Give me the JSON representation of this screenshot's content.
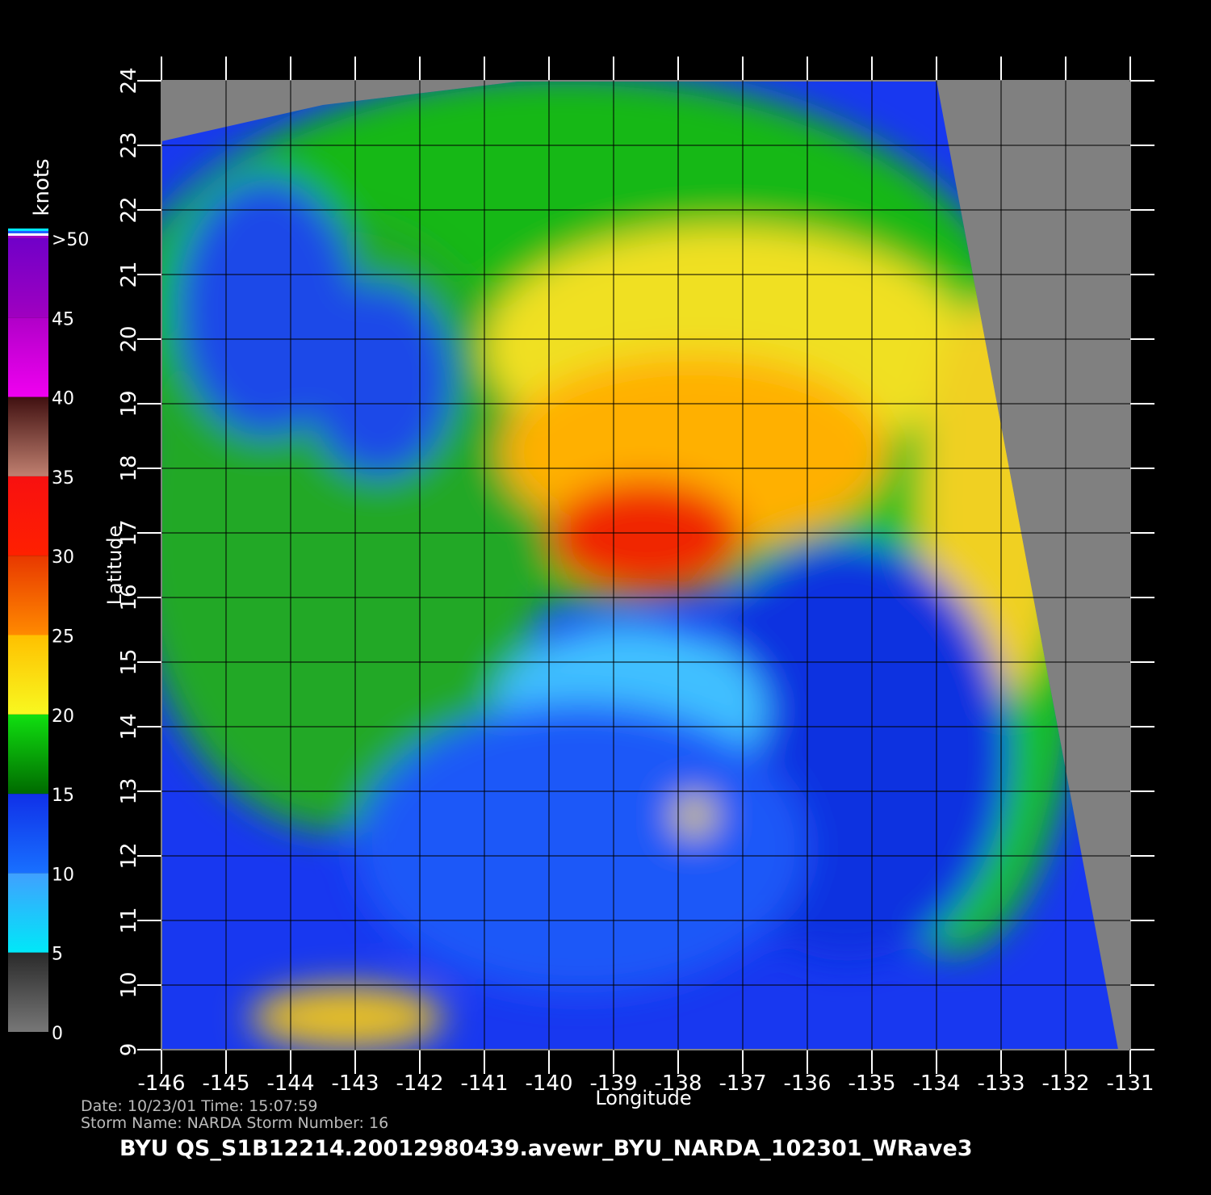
{
  "map": {
    "xlabel": "Longitude",
    "ylabel": "Latitude",
    "xlim": [
      -146,
      -131
    ],
    "ylim": [
      9,
      24
    ],
    "xticks": [
      -146,
      -145,
      -144,
      -143,
      -142,
      -141,
      -140,
      -139,
      -138,
      -137,
      -136,
      -135,
      -134,
      -133,
      -132,
      -131
    ],
    "yticks": [
      9,
      10,
      11,
      12,
      13,
      14,
      15,
      16,
      17,
      18,
      19,
      20,
      21,
      22,
      23,
      24
    ],
    "grid": true,
    "colorbar": {
      "label": "knots",
      "lim": [
        0,
        50
      ],
      "ticks": [
        0,
        5,
        10,
        15,
        20,
        25,
        30,
        35,
        40,
        45,
        {
          "value": 50,
          "label": ">50"
        }
      ],
      "colors": [
        [
          "#777777",
          "#2a2a2a"
        ],
        [
          "#00e8f8",
          "#40a0ff"
        ],
        [
          "#1870ff",
          "#1030e8"
        ],
        [
          "#006a00",
          "#10e010"
        ],
        [
          "#f8f820",
          "#ffc000"
        ],
        [
          "#ff8a00",
          "#e83800"
        ],
        [
          "#ff2000",
          "#f81010"
        ],
        [
          "#c08070",
          "#401010"
        ],
        [
          "#f000f0",
          "#b000c8"
        ],
        [
          "#a000c0",
          "#7000c8"
        ]
      ]
    }
  },
  "footer": {
    "line1": "Date: 10/23/01   Time: 15:07:59",
    "line2": "Storm Name: NARDA   Storm Number: 16",
    "title": "BYU  QS_S1B12214.20012980439.avewr_BYU_NARDA_102301_WRave3"
  }
}
